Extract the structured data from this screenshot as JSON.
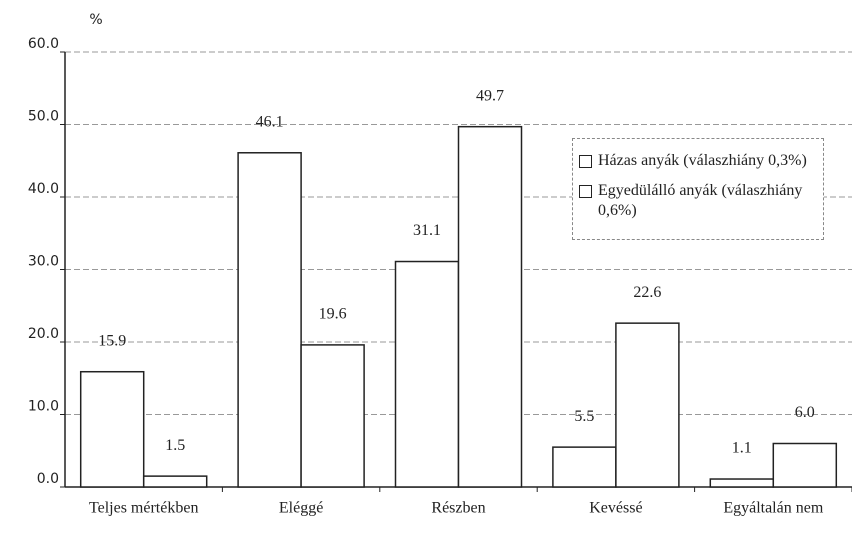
{
  "chart_data": {
    "type": "bar",
    "ylabel": "%",
    "categories": [
      "Teljes mértékben",
      "Eléggé",
      "Részben",
      "Kevéssé",
      "Egyáltalán nem"
    ],
    "series": [
      {
        "name": "Házas anyák (válaszhiány 0,3%)",
        "color": "#ffffff",
        "values": [
          15.9,
          46.1,
          31.1,
          5.5,
          1.1
        ],
        "value_labels": [
          "15.9",
          "46.1",
          "31.1",
          "5.5",
          "1.1"
        ]
      },
      {
        "name": "Egyedülálló anyák (válaszhiány 0,6%)",
        "color": "#ffffff",
        "values": [
          1.5,
          19.6,
          49.7,
          22.6,
          6.0
        ],
        "value_labels": [
          "1.5",
          "19.6",
          "49.7",
          "22.6",
          "6.0"
        ]
      }
    ],
    "ylim": [
      0,
      60
    ],
    "yticks": [
      {
        "value": 0,
        "label": "0.0"
      },
      {
        "value": 10,
        "label": "10.0"
      },
      {
        "value": 20,
        "label": "20.0"
      },
      {
        "value": 30,
        "label": "30.0"
      },
      {
        "value": 40,
        "label": "40.0"
      },
      {
        "value": 50,
        "label": "50.0"
      },
      {
        "value": 60,
        "label": "60.0"
      }
    ],
    "grid": true
  }
}
